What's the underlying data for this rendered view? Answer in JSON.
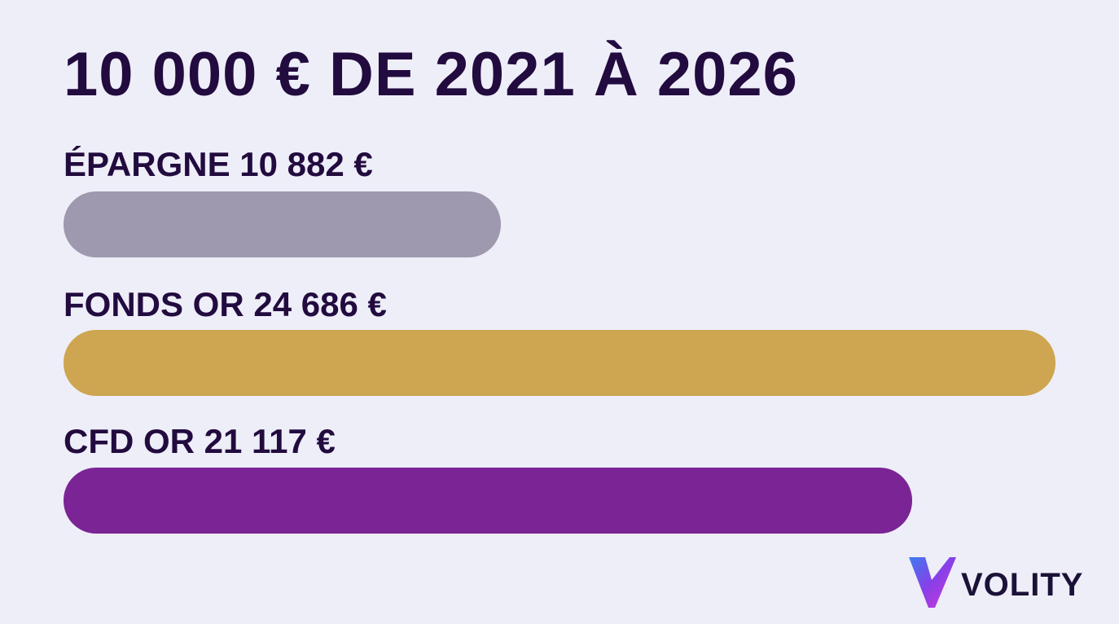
{
  "title": "10 000 € DE 2021 À 2026",
  "chart_data": {
    "type": "bar",
    "orientation": "horizontal",
    "title": "10 000 € DE 2021 À 2026",
    "categories": [
      "ÉPARGNE",
      "FONDS OR",
      "CFD OR"
    ],
    "values": [
      10882,
      24686,
      21117
    ],
    "value_labels": [
      "10 882 €",
      "24 686 €",
      "21 117 €"
    ],
    "colors": [
      "#9e99ae",
      "#cea550",
      "#7b2495"
    ],
    "grid": false
  },
  "bars": [
    {
      "label": "ÉPARGNE 10 882 €"
    },
    {
      "label": "FONDS OR 24 686 €"
    },
    {
      "label": "CFD OR 21 117 €"
    }
  ],
  "logo": {
    "text": "VOLITY",
    "icon": "volity-v-logo-icon"
  }
}
